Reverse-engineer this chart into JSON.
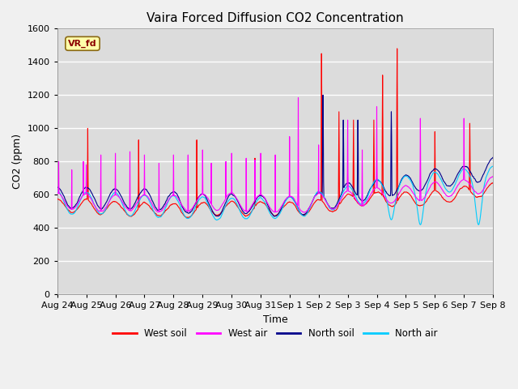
{
  "title": "Vaira Forced Diffusion CO2 Concentration",
  "xlabel": "Time",
  "ylabel": "CO2 (ppm)",
  "ylim": [
    0,
    1600
  ],
  "yticks": [
    0,
    200,
    400,
    600,
    800,
    1000,
    1200,
    1400,
    1600
  ],
  "x_labels": [
    "Aug 24",
    "Aug 25",
    "Aug 26",
    "Aug 27",
    "Aug 28",
    "Aug 29",
    "Aug 30",
    "Aug 31",
    "Sep 1",
    "Sep 2",
    "Sep 3",
    "Sep 4",
    "Sep 5",
    "Sep 6",
    "Sep 7",
    "Sep 8"
  ],
  "legend_label": "VR_fd",
  "series_colors": {
    "West soil": "#ff0000",
    "West air": "#ff00ff",
    "North soil": "#00008b",
    "North air": "#00ccff"
  },
  "plot_bg_color": "#dcdcdc",
  "fig_bg_color": "#f0f0f0"
}
